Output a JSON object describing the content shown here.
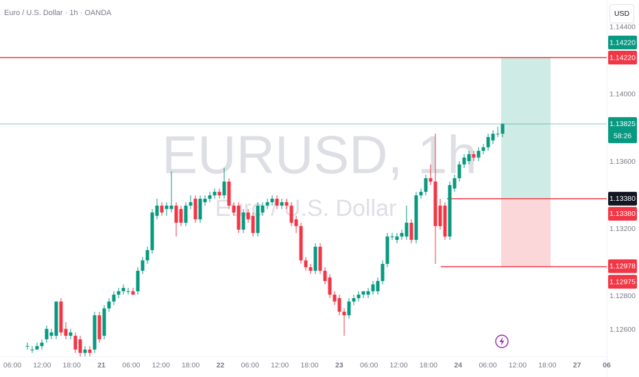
{
  "chart_data": {
    "type": "candlestick",
    "title": "Euro / U.S. Dollar · 1h · OANDA",
    "watermark": "EURUSD, 1h",
    "watermark_subtitle": "Euro / U.S. Dollar",
    "currency": "USD",
    "countdown": "58:26",
    "up_color": "#089981",
    "down_color": "#f23645",
    "xticks": [
      "06:00",
      "12:00",
      "18:00",
      "21",
      "06:00",
      "12:00",
      "18:00",
      "22",
      "06:00",
      "12:00",
      "18:00",
      "23",
      "06:00",
      "12:00",
      "18:00",
      "24",
      "06:00",
      "12:00",
      "18:00",
      "27",
      "06"
    ],
    "ylim": [
      1.12441,
      1.14563
    ],
    "yticks": [
      {
        "value": 1.126,
        "label": "1.12600"
      },
      {
        "value": 1.128,
        "label": "1.12800"
      },
      {
        "value": 1.132,
        "label": "1.13200"
      },
      {
        "value": 1.136,
        "label": "1.13600"
      },
      {
        "value": 1.14,
        "label": "1.14000"
      },
      {
        "value": 1.144,
        "label": "1.14400"
      }
    ],
    "open": [
      1.12503,
      1.12482,
      1.12482,
      1.12503,
      1.12543,
      1.12564,
      1.12564,
      1.12768,
      1.12605,
      1.12564,
      1.12564,
      1.12543,
      1.12462,
      1.12482,
      1.12482,
      1.12686,
      1.12564,
      1.12727,
      1.12768,
      1.12809,
      1.12829,
      1.12829,
      1.12829,
      1.12829,
      1.12951,
      1.13013,
      1.13074,
      1.13278,
      1.13339,
      1.13319,
      1.13319,
      1.13339,
      1.13319,
      1.13237,
      1.13339,
      1.1338,
      1.13257,
      1.13359,
      1.1338,
      1.134,
      1.13421,
      1.134,
      1.13482,
      1.13339,
      1.13339,
      1.13196,
      1.13298,
      1.13278,
      1.13176,
      1.13298,
      1.13339,
      1.13359,
      1.1338,
      1.13339,
      1.13359,
      1.13339,
      1.13257,
      1.13217,
      1.13013,
      1.12972,
      1.12951,
      1.13094,
      1.12951,
      1.12911,
      1.12809,
      1.12788,
      1.12707,
      1.12686,
      1.12768,
      1.12788,
      1.12809,
      1.12809,
      1.12829,
      1.12829,
      1.1289,
      1.12992,
      1.13155,
      1.13135,
      1.13155,
      1.13155,
      1.13237,
      1.13135,
      1.134,
      1.13421,
      1.13502,
      1.13482,
      1.13339,
      1.13339,
      1.13155,
      1.13441,
      1.13502,
      1.13584,
      1.13604,
      1.13645,
      1.13625,
      1.13665,
      1.13686,
      1.13727,
      1.13767,
      1.13767
    ],
    "high": [
      1.12523,
      1.12503,
      1.12523,
      1.12543,
      1.12625,
      1.12605,
      1.12768,
      1.12788,
      1.12645,
      1.12605,
      1.12584,
      1.12564,
      1.12503,
      1.12503,
      1.12707,
      1.12707,
      1.12747,
      1.12788,
      1.12829,
      1.12849,
      1.1287,
      1.12849,
      1.12849,
      1.12972,
      1.13033,
      1.13094,
      1.13319,
      1.1338,
      1.13359,
      1.13359,
      1.13543,
      1.13359,
      1.13339,
      1.13359,
      1.134,
      1.134,
      1.134,
      1.134,
      1.13421,
      1.13441,
      1.13441,
      1.13563,
      1.13502,
      1.13359,
      1.13359,
      1.13319,
      1.13319,
      1.13298,
      1.13359,
      1.13359,
      1.1338,
      1.134,
      1.134,
      1.1338,
      1.1338,
      1.13359,
      1.13278,
      1.13237,
      1.13033,
      1.12992,
      1.13115,
      1.13115,
      1.12972,
      1.12931,
      1.12829,
      1.12809,
      1.12727,
      1.12788,
      1.12809,
      1.12829,
      1.12829,
      1.12849,
      1.1289,
      1.12911,
      1.13013,
      1.13176,
      1.13176,
      1.13176,
      1.13196,
      1.13339,
      1.13257,
      1.13421,
      1.13441,
      1.13523,
      1.13584,
      1.13767,
      1.1338,
      1.13359,
      1.13482,
      1.13523,
      1.13604,
      1.13645,
      1.13665,
      1.13665,
      1.13686,
      1.13706,
      1.13767,
      1.13788,
      1.13808,
      1.13829
    ],
    "low": [
      1.12482,
      1.12462,
      1.12482,
      1.12482,
      1.12523,
      1.12543,
      1.12543,
      1.12564,
      1.12543,
      1.12543,
      1.12462,
      1.12441,
      1.12441,
      1.12441,
      1.12462,
      1.12523,
      1.12543,
      1.12707,
      1.12747,
      1.12788,
      1.12809,
      1.12809,
      1.12809,
      1.12809,
      1.12931,
      1.12992,
      1.13053,
      1.13257,
      1.13278,
      1.13278,
      1.13298,
      1.13155,
      1.13217,
      1.13217,
      1.13319,
      1.13237,
      1.13237,
      1.13339,
      1.13359,
      1.1338,
      1.1338,
      1.1338,
      1.13319,
      1.13278,
      1.13176,
      1.13176,
      1.13237,
      1.13155,
      1.13155,
      1.13278,
      1.13319,
      1.13339,
      1.13319,
      1.13319,
      1.13319,
      1.13217,
      1.13176,
      1.12992,
      1.12951,
      1.12931,
      1.12931,
      1.12931,
      1.1287,
      1.12788,
      1.12747,
      1.12686,
      1.12564,
      1.12666,
      1.12747,
      1.12768,
      1.12788,
      1.12788,
      1.12809,
      1.12809,
      1.1287,
      1.12972,
      1.13135,
      1.13115,
      1.13135,
      1.13135,
      1.13115,
      1.13115,
      1.1338,
      1.134,
      1.13461,
      1.12992,
      1.13196,
      1.13135,
      1.13135,
      1.13421,
      1.13482,
      1.13563,
      1.13584,
      1.13604,
      1.13604,
      1.13645,
      1.13665,
      1.13706,
      1.13747,
      1.13747
    ],
    "close": [
      1.12503,
      1.12482,
      1.12503,
      1.12523,
      1.12605,
      1.12584,
      1.12768,
      1.12584,
      1.12564,
      1.12584,
      1.12482,
      1.12462,
      1.12482,
      1.12462,
      1.12686,
      1.12543,
      1.12727,
      1.12768,
      1.12809,
      1.12829,
      1.12849,
      1.12829,
      1.12809,
      1.12951,
      1.13013,
      1.13074,
      1.13298,
      1.13339,
      1.13298,
      1.13339,
      1.13339,
      1.13237,
      1.13237,
      1.13339,
      1.13359,
      1.13257,
      1.1338,
      1.1338,
      1.134,
      1.13421,
      1.134,
      1.13482,
      1.13339,
      1.13298,
      1.13196,
      1.13298,
      1.13257,
      1.13176,
      1.13339,
      1.13339,
      1.13359,
      1.1338,
      1.13339,
      1.13359,
      1.13339,
      1.13237,
      1.13217,
      1.13013,
      1.12972,
      1.12951,
      1.13094,
      1.12951,
      1.1289,
      1.12809,
      1.12768,
      1.12707,
      1.12686,
      1.12768,
      1.12788,
      1.12809,
      1.12829,
      1.12829,
      1.1287,
      1.1289,
      1.12992,
      1.13155,
      1.13155,
      1.13155,
      1.13176,
      1.13237,
      1.13135,
      1.134,
      1.13421,
      1.13502,
      1.13482,
      1.13217,
      1.13217,
      1.13155,
      1.13461,
      1.13502,
      1.13584,
      1.13625,
      1.13645,
      1.13625,
      1.13665,
      1.13686,
      1.13747,
      1.13767,
      1.13767,
      1.13825
    ],
    "price_badges": [
      {
        "value": 1.1422,
        "label": "1.14220",
        "color": "#089981"
      },
      {
        "value": 1.1422,
        "label": "1.14220",
        "color": "#f23645"
      },
      {
        "value": 1.13825,
        "label": "1.13825",
        "color": "#089981"
      },
      {
        "value": 1.1338,
        "label": "1.13380",
        "color": "#131722"
      },
      {
        "value": 1.1338,
        "label": "1.13380",
        "color": "#f23645"
      },
      {
        "value": 1.12978,
        "label": "1.12978",
        "color": "#f23645"
      },
      {
        "value": 1.12975,
        "label": "1.12975",
        "color": "#f23645"
      }
    ]
  }
}
